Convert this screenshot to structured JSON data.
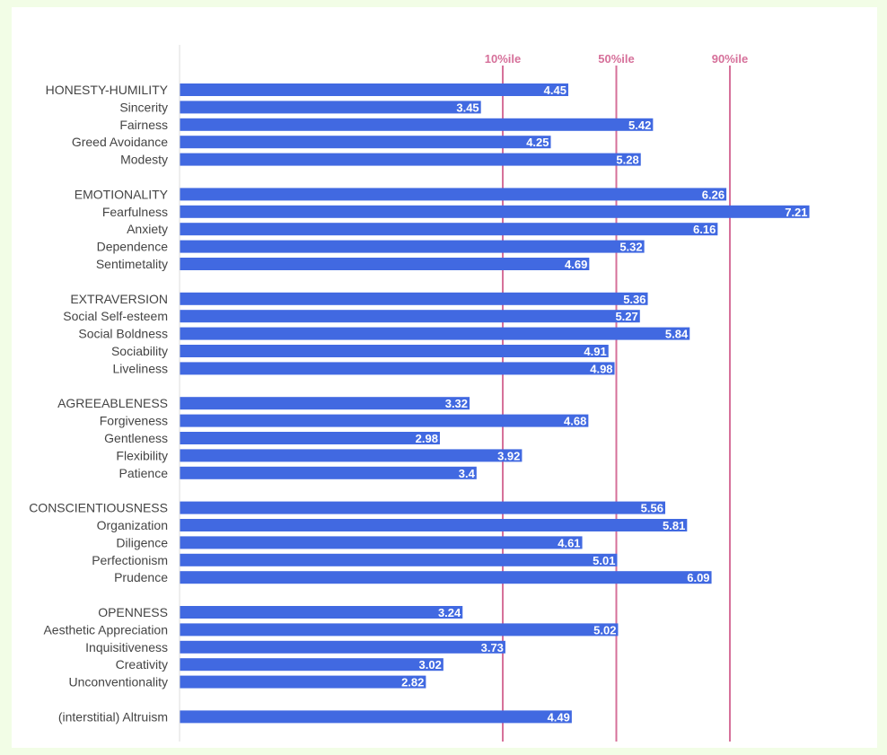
{
  "colors": {
    "page_background": "#f2fde6",
    "panel_background": "#ffffff",
    "bar": "#4169e1",
    "reference_line": "#d6709a",
    "axis_line": "#dddddd",
    "category_text": "#444444",
    "value_text": "#ffffff"
  },
  "chart_data": {
    "type": "bar",
    "orientation": "horizontal",
    "title": "",
    "xlabel": "",
    "ylabel": "",
    "xlim": [
      0,
      8
    ],
    "grid": false,
    "legend": "none",
    "categories": [
      "HONESTY-HUMILITY",
      "Sincerity",
      "Fairness",
      "Greed Avoidance",
      "Modesty",
      "EMOTIONALITY",
      "Fearfulness",
      "Anxiety",
      "Dependence",
      "Sentimetality",
      "EXTRAVERSION",
      "Social Self-esteem",
      "Social Boldness",
      "Sociability",
      "Liveliness",
      "AGREEABLENESS",
      "Forgiveness",
      "Gentleness",
      "Flexibility",
      "Patience",
      "CONSCIENTIOUSNESS",
      "Organization",
      "Diligence",
      "Perfectionism",
      "Prudence",
      "OPENNESS",
      "Aesthetic Appreciation",
      "Inquisitiveness",
      "Creativity",
      "Unconventionality",
      "(interstitial) Altruism"
    ],
    "values": [
      4.45,
      3.45,
      5.42,
      4.25,
      5.28,
      6.26,
      7.21,
      6.16,
      5.32,
      4.69,
      5.36,
      5.27,
      5.84,
      4.91,
      4.98,
      3.32,
      4.68,
      2.98,
      3.92,
      3.4,
      5.56,
      5.81,
      4.61,
      5.01,
      6.09,
      3.24,
      5.02,
      3.73,
      3.02,
      2.82,
      4.49
    ],
    "value_labels": [
      "4.45",
      "3.45",
      "5.42",
      "4.25",
      "5.28",
      "6.26",
      "7.21",
      "6.16",
      "5.32",
      "4.69",
      "5.36",
      "5.27",
      "5.84",
      "4.91",
      "4.98",
      "3.32",
      "4.68",
      "2.98",
      "3.92",
      "3.4",
      "5.56",
      "5.81",
      "4.61",
      "5.01",
      "6.09",
      "3.24",
      "5.02",
      "3.73",
      "3.02",
      "2.82",
      "4.49"
    ],
    "groups": [
      5,
      5,
      5,
      5,
      5,
      5,
      1
    ],
    "reference_lines": [
      {
        "label": "10%ile",
        "value": 3.7
      },
      {
        "label": "50%ile",
        "value": 5.0
      },
      {
        "label": "90%ile",
        "value": 6.3
      }
    ]
  }
}
